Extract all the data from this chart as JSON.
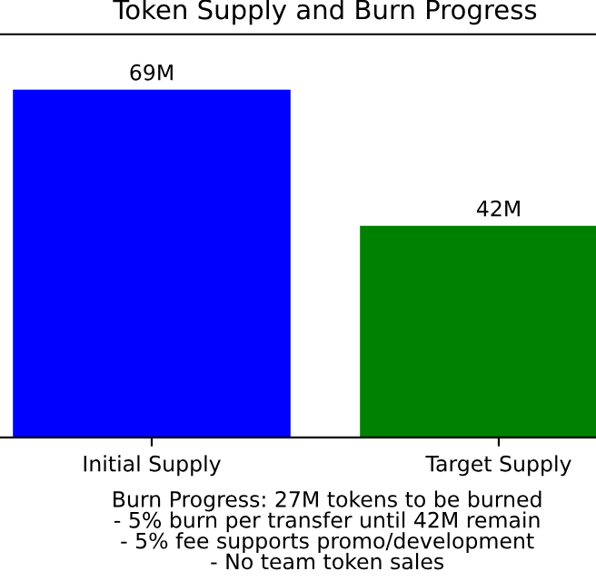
{
  "chart_data": {
    "type": "bar",
    "title": "Token Supply and Burn Progress",
    "categories": [
      "Initial Supply",
      "Target Supply"
    ],
    "values": [
      69,
      42
    ],
    "colors": [
      "#0000ff",
      "#008000"
    ],
    "value_labels": [
      "69M",
      "42M"
    ],
    "ylim": [
      0,
      80
    ],
    "tick_labels": "x",
    "grid": false,
    "annotations": [
      "Burn Progress: 27M tokens to be burned\n- 5% burn per transfer until 42M remain\n- 5% fee supports promo/development\n- No team token sales"
    ]
  }
}
